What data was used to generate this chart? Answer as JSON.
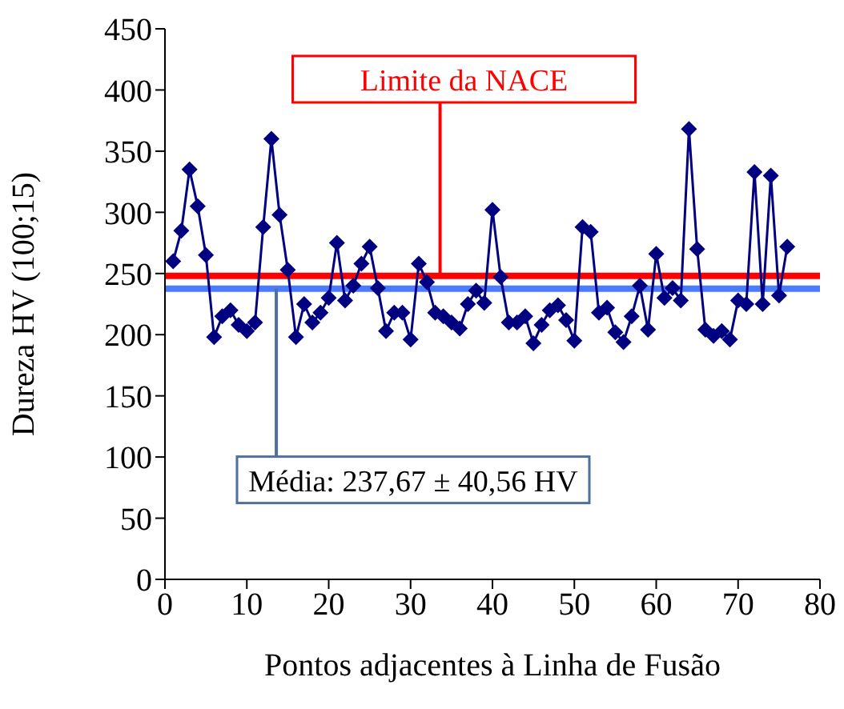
{
  "chart_data": {
    "type": "line",
    "xlabel": "Pontos adjacentes à Linha de Fusão",
    "ylabel": "Dureza HV (100;15)",
    "x": [
      1,
      2,
      3,
      4,
      5,
      6,
      7,
      8,
      9,
      10,
      11,
      12,
      13,
      14,
      15,
      16,
      17,
      18,
      19,
      20,
      21,
      22,
      23,
      24,
      25,
      26,
      27,
      28,
      29,
      30,
      31,
      32,
      33,
      34,
      35,
      36,
      37,
      38,
      39,
      40,
      41,
      42,
      43,
      44,
      45,
      46,
      47,
      48,
      49,
      50,
      51,
      52,
      53,
      54,
      55,
      56,
      57,
      58,
      59,
      60,
      61,
      62,
      63,
      64,
      65,
      66,
      67,
      68,
      69,
      70,
      71,
      72,
      73,
      74,
      75,
      76
    ],
    "series": [
      {
        "color": "#000080",
        "values": [
          260,
          285,
          335,
          305,
          265,
          198,
          215,
          220,
          208,
          203,
          210,
          288,
          360,
          298,
          253,
          198,
          225,
          210,
          218,
          230,
          275,
          228,
          240,
          258,
          272,
          238,
          203,
          218,
          218,
          196,
          258,
          243,
          218,
          215,
          210,
          205,
          225,
          236,
          226,
          302,
          247,
          210,
          210,
          215,
          193,
          208,
          220,
          224,
          212,
          195,
          288,
          284,
          218,
          222,
          202,
          194,
          215,
          240,
          204,
          266,
          230,
          238,
          228,
          368,
          270,
          204,
          199,
          203,
          196,
          228,
          225,
          333,
          225,
          330,
          232,
          272
        ]
      }
    ],
    "marker": "diamond",
    "line_style": "solid",
    "xlim": [
      0,
      80
    ],
    "xticks": [
      0,
      10,
      20,
      30,
      40,
      50,
      60,
      70,
      80
    ],
    "ylim": [
      0,
      450
    ],
    "yticks": [
      0,
      50,
      100,
      150,
      200,
      250,
      300,
      350,
      400,
      450
    ],
    "ref_lines": [
      {
        "axis": "y",
        "value": 248,
        "label": "Limite da NACE",
        "color": "#ff0000"
      },
      {
        "axis": "y",
        "value": 237.67,
        "label": "Média: 237,67 ± 40,56 HV",
        "color": "#4a7bff"
      }
    ]
  }
}
